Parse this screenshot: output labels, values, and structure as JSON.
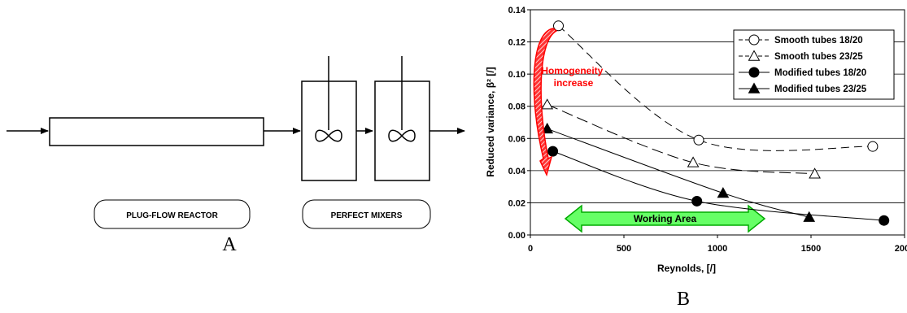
{
  "panel_a": {
    "label": "A",
    "plug_flow_label": "PLUG-FLOW REACTOR",
    "mixers_label": "PERFECT MIXERS"
  },
  "panel_b": {
    "label": "B"
  },
  "chart_data": {
    "type": "line",
    "title": "",
    "xlabel": "Reynolds, [/]",
    "ylabel": "Reduced variance, β² [/]",
    "xlim": [
      0,
      2000
    ],
    "ylim": [
      0,
      0.14
    ],
    "x_ticks": [
      "0",
      "500",
      "1000",
      "1500",
      "2000"
    ],
    "y_ticks": [
      "0.00",
      "0.02",
      "0.04",
      "0.06",
      "0.08",
      "0.10",
      "0.12",
      "0.14"
    ],
    "grid": "horizontal",
    "legend_position": "top-right",
    "series": [
      {
        "name": "Smooth tubes 18/20",
        "marker": "circle-open",
        "line": "long-dash",
        "points": [
          [
            150,
            0.13
          ],
          [
            900,
            0.059
          ],
          [
            1830,
            0.055
          ]
        ]
      },
      {
        "name": "Smooth tubes 23/25",
        "marker": "triangle-open",
        "line": "dash",
        "points": [
          [
            90,
            0.081
          ],
          [
            870,
            0.045
          ],
          [
            1520,
            0.038
          ]
        ]
      },
      {
        "name": "Modified tubes 18/20",
        "marker": "circle-filled",
        "line": "solid",
        "points": [
          [
            120,
            0.052
          ],
          [
            890,
            0.021
          ],
          [
            1890,
            0.009
          ]
        ]
      },
      {
        "name": "Modified tubes 23/25",
        "marker": "triangle-filled",
        "line": "solid",
        "points": [
          [
            90,
            0.066
          ],
          [
            1030,
            0.026
          ],
          [
            1490,
            0.011
          ]
        ]
      }
    ],
    "annotations": {
      "homogeneity": "Homogeneity\nincrease",
      "working_area": "Working Area",
      "working_area_range": [
        100,
        1200
      ]
    },
    "colors": {
      "arrow": "#ff0000",
      "working_area_fill": "#66ff66",
      "working_area_stroke": "#00aa00",
      "annotation_text": "#ff0000"
    }
  }
}
